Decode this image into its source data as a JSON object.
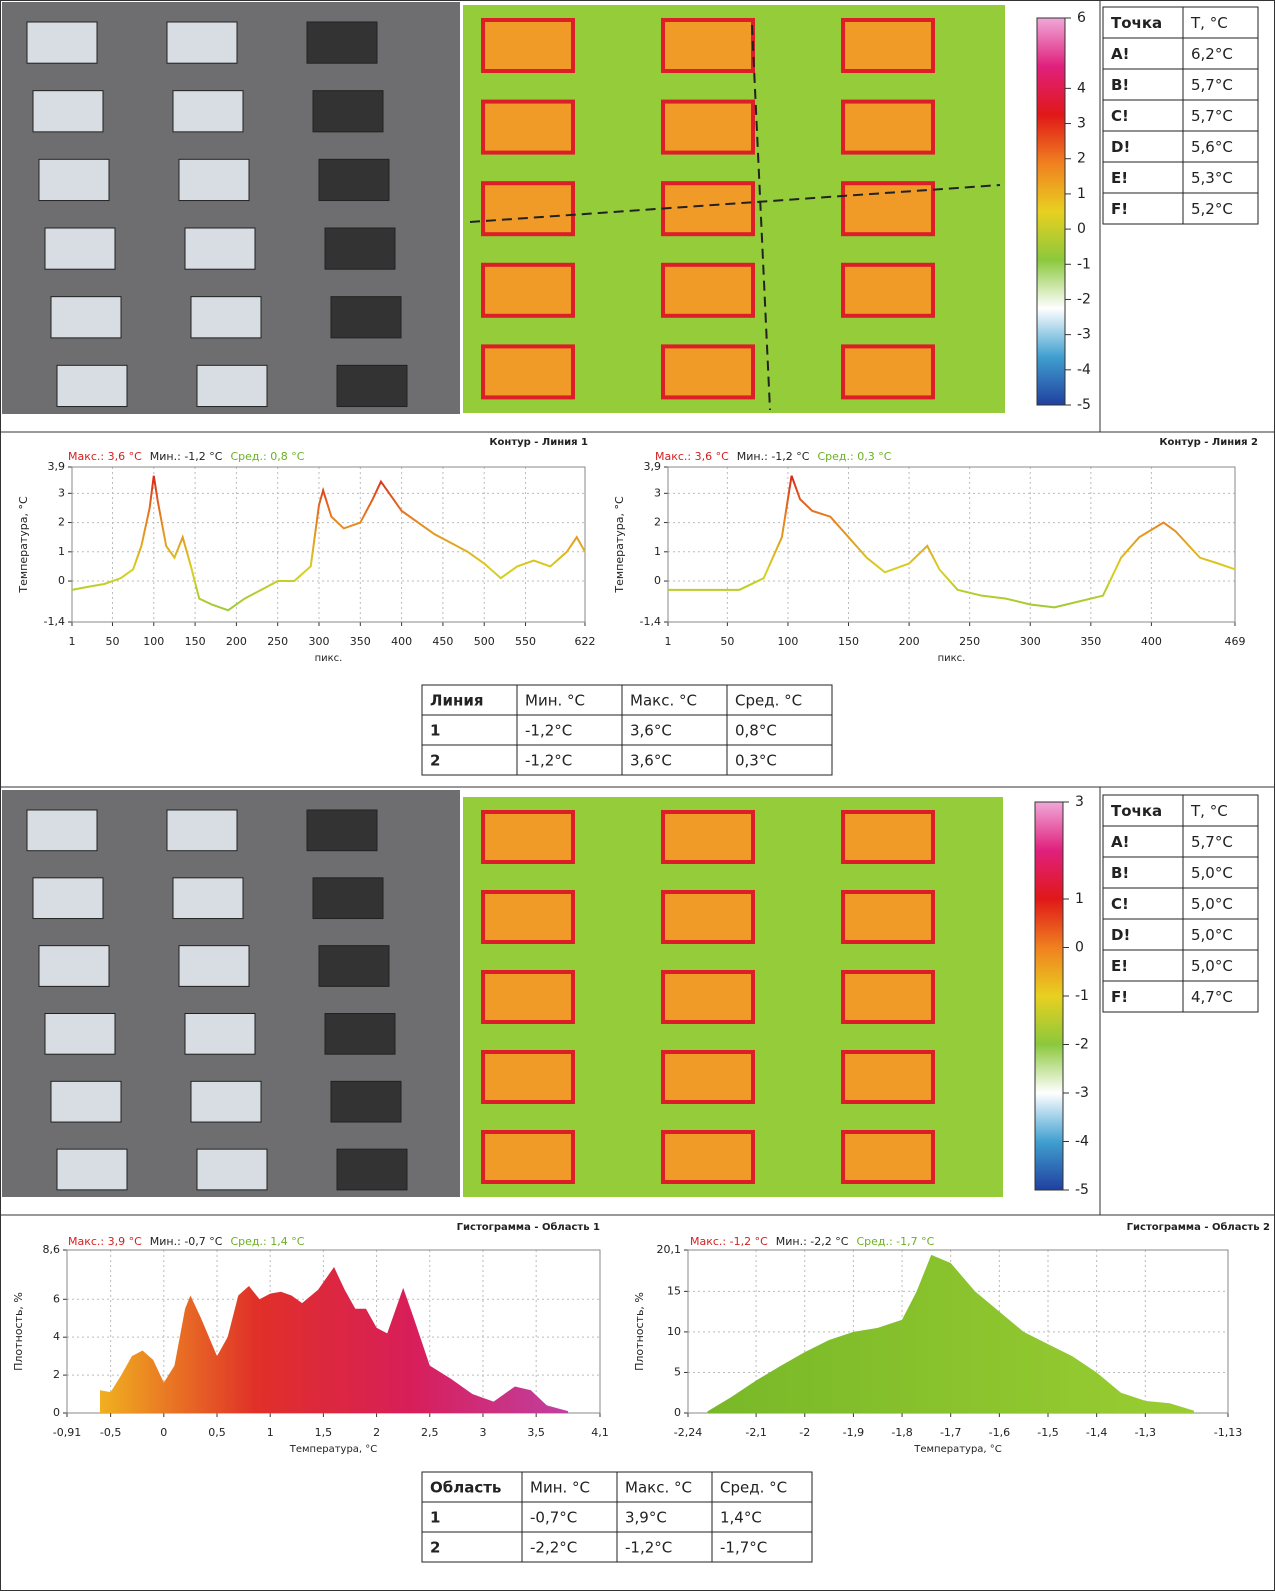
{
  "report": {
    "blocks": [
      {
        "colorbar": {
          "lim": [
            -5,
            6
          ],
          "ticks": [
            6,
            4,
            3,
            2,
            1,
            0,
            -1,
            -2,
            -3,
            -4,
            -5
          ]
        },
        "points": {
          "header": [
            "Точка",
            "T, °C"
          ],
          "rows": [
            [
              "A!",
              "6,2°C"
            ],
            [
              "B!",
              "5,7°C"
            ],
            [
              "C!",
              "5,7°C"
            ],
            [
              "D!",
              "5,6°C"
            ],
            [
              "E!",
              "5,3°C"
            ],
            [
              "F!",
              "5,2°C"
            ]
          ]
        },
        "summary": {
          "header": [
            "Линия",
            "Мин. °C",
            "Макс. °C",
            "Сред. °C"
          ],
          "rows": [
            [
              "1",
              "-1,2°C",
              "3,6°C",
              "0,8°C"
            ],
            [
              "2",
              "-1,2°C",
              "3,6°C",
              "0,3°C"
            ]
          ]
        }
      },
      {
        "colorbar": {
          "lim": [
            -5,
            3
          ],
          "ticks": [
            3,
            1,
            0,
            -1,
            -2,
            -3,
            -4,
            -5
          ]
        },
        "points": {
          "header": [
            "Точка",
            "T, °C"
          ],
          "rows": [
            [
              "A!",
              "5,7°C"
            ],
            [
              "B!",
              "5,0°C"
            ],
            [
              "C!",
              "5,0°C"
            ],
            [
              "D!",
              "5,0°C"
            ],
            [
              "E!",
              "5,0°C"
            ],
            [
              "F!",
              "4,7°C"
            ]
          ]
        },
        "summary": {
          "header": [
            "Область",
            "Мин. °C",
            "Макс. °C",
            "Сред. °C"
          ],
          "rows": [
            [
              "1",
              "-0,7°C",
              "3,9°C",
              "1,4°C"
            ],
            [
              "2",
              "-2,2°C",
              "-1,2°C",
              "-1,7°C"
            ]
          ]
        }
      }
    ]
  },
  "chart_data": [
    {
      "type": "line",
      "title": "Контур - Линия 1",
      "stats": [
        {
          "text": "Макс.: 3,6 °C",
          "color": "#d42020"
        },
        {
          "text": "Мин.: -1,2 °C",
          "color": "#222222"
        },
        {
          "text": "Сред.: 0,8 °C",
          "color": "#6ab023"
        }
      ],
      "x_label": "пикс.",
      "y_label": "Температура, °C",
      "x": [
        1,
        20,
        40,
        60,
        75,
        85,
        95,
        100,
        105,
        115,
        125,
        135,
        145,
        155,
        170,
        190,
        210,
        230,
        250,
        270,
        290,
        300,
        305,
        315,
        330,
        350,
        365,
        375,
        385,
        400,
        420,
        440,
        460,
        480,
        500,
        520,
        540,
        560,
        580,
        600,
        612,
        622
      ],
      "values": [
        -0.3,
        -0.2,
        -0.1,
        0.1,
        0.4,
        1.2,
        2.5,
        3.6,
        2.7,
        1.2,
        0.8,
        1.5,
        0.5,
        -0.6,
        -0.8,
        -1.0,
        -0.6,
        -0.3,
        0,
        0,
        0.5,
        2.6,
        3.1,
        2.2,
        1.8,
        2.0,
        2.8,
        3.4,
        3.0,
        2.4,
        2.0,
        1.6,
        1.3,
        1.0,
        0.6,
        0.1,
        0.5,
        0.7,
        0.5,
        1.0,
        1.5,
        1.0
      ],
      "xlim": [
        1,
        622
      ],
      "xticks": [
        1,
        50,
        100,
        150,
        200,
        250,
        300,
        350,
        400,
        450,
        500,
        550,
        622
      ],
      "ylim": [
        -1.4,
        3.9
      ],
      "yticks": [
        {
          "value": 3.9,
          "label": "3,9"
        },
        3,
        2,
        1,
        0,
        {
          "value": -1.4,
          "label": "-1,4"
        }
      ],
      "grid": true,
      "colormap": [
        "#8cc83c",
        "#d8d020",
        "#e88020",
        "#d41818"
      ]
    },
    {
      "type": "line",
      "title": "Контур - Линия 2",
      "stats": [
        {
          "text": "Макс.: 3,6 °C",
          "color": "#d42020"
        },
        {
          "text": "Мин.: -1,2 °C",
          "color": "#222222"
        },
        {
          "text": "Сред.: 0,3 °C",
          "color": "#6ab023"
        }
      ],
      "x_label": "пикс.",
      "y_label": "Температура, °C",
      "x": [
        1,
        30,
        60,
        80,
        95,
        103,
        110,
        120,
        135,
        150,
        165,
        180,
        200,
        215,
        225,
        240,
        260,
        280,
        300,
        320,
        340,
        360,
        375,
        390,
        410,
        420,
        440,
        455,
        469
      ],
      "values": [
        -0.3,
        -0.3,
        -0.3,
        0.1,
        1.5,
        3.6,
        2.8,
        2.4,
        2.2,
        1.5,
        0.8,
        0.3,
        0.6,
        1.2,
        0.4,
        -0.3,
        -0.5,
        -0.6,
        -0.8,
        -0.9,
        -0.7,
        -0.5,
        0.8,
        1.5,
        2.0,
        1.7,
        0.8,
        0.6,
        0.4
      ],
      "xlim": [
        1,
        469
      ],
      "xticks": [
        1,
        50,
        100,
        150,
        200,
        250,
        300,
        350,
        400,
        469
      ],
      "ylim": [
        -1.4,
        3.9
      ],
      "yticks": [
        {
          "value": 3.9,
          "label": "3,9"
        },
        3,
        2,
        1,
        0,
        {
          "value": -1.4,
          "label": "-1,4"
        }
      ],
      "grid": true,
      "colormap": [
        "#8cc83c",
        "#d8d020",
        "#e88020",
        "#d41818"
      ]
    },
    {
      "type": "area",
      "title": "Гистограмма - Область 1",
      "stats": [
        {
          "text": "Макс.: 3,9 °C",
          "color": "#d42020"
        },
        {
          "text": "Мин.: -0,7 °C",
          "color": "#222222"
        },
        {
          "text": "Сред.: 1,4 °C",
          "color": "#6ab023"
        }
      ],
      "x_label": "Температура, °C",
      "y_label": "Плотность, %",
      "x": [
        -0.6,
        -0.5,
        -0.4,
        -0.3,
        -0.2,
        -0.1,
        0,
        0.1,
        0.2,
        0.25,
        0.35,
        0.5,
        0.6,
        0.7,
        0.8,
        0.9,
        1.0,
        1.1,
        1.2,
        1.3,
        1.45,
        1.6,
        1.7,
        1.8,
        1.9,
        2.0,
        2.1,
        2.25,
        2.35,
        2.5,
        2.7,
        2.9,
        3.1,
        3.3,
        3.45,
        3.6,
        3.8
      ],
      "values": [
        1.2,
        1.1,
        2.0,
        3.0,
        3.3,
        2.8,
        1.6,
        2.5,
        5.5,
        6.2,
        5.0,
        3.0,
        4.0,
        6.2,
        6.7,
        6.0,
        6.3,
        6.4,
        6.2,
        5.8,
        6.5,
        7.7,
        6.5,
        5.5,
        5.5,
        4.5,
        4.2,
        6.6,
        5.0,
        2.5,
        1.8,
        1.0,
        0.6,
        1.4,
        1.2,
        0.4,
        0.1
      ],
      "xlim": [
        -0.91,
        4.1
      ],
      "xticks": [
        {
          "value": -0.91,
          "label": "-0,91"
        },
        {
          "value": -0.5,
          "label": "-0,5"
        },
        0,
        {
          "value": 0.5,
          "label": "0,5"
        },
        1,
        {
          "value": 1.5,
          "label": "1,5"
        },
        2,
        {
          "value": 2.5,
          "label": "2,5"
        },
        3,
        {
          "value": 3.5,
          "label": "3,5"
        },
        {
          "value": 4.1,
          "label": "4,1"
        }
      ],
      "ylim": [
        0,
        8.6
      ],
      "yticks": [
        0,
        2,
        4,
        6,
        {
          "value": 8.6,
          "label": "8,6"
        }
      ],
      "grid": true,
      "colormap": [
        "#f0b020",
        "#e03028",
        "#d81e5a",
        "#c040a0"
      ]
    },
    {
      "type": "area",
      "title": "Гистограмма - Область 2",
      "stats": [
        {
          "text": "Макс.: -1,2 °C",
          "color": "#d42020"
        },
        {
          "text": "Мин.: -2,2 °C",
          "color": "#222222"
        },
        {
          "text": "Сред.: -1,7 °C",
          "color": "#6ab023"
        }
      ],
      "x_label": "Температура, °C",
      "y_label": "Плотность, %",
      "x": [
        -2.2,
        -2.15,
        -2.1,
        -2.05,
        -2.0,
        -1.95,
        -1.9,
        -1.85,
        -1.8,
        -1.77,
        -1.74,
        -1.7,
        -1.65,
        -1.6,
        -1.55,
        -1.5,
        -1.45,
        -1.4,
        -1.35,
        -1.3,
        -1.25,
        -1.2
      ],
      "values": [
        0.2,
        2,
        4,
        5.8,
        7.5,
        9,
        10,
        10.5,
        11.5,
        15,
        19.5,
        18.5,
        15,
        12.5,
        10,
        8.5,
        7,
        5,
        2.5,
        1.5,
        1.2,
        0.3
      ],
      "xlim": [
        -2.24,
        -1.13
      ],
      "xticks": [
        {
          "value": -2.24,
          "label": "-2,24"
        },
        {
          "value": -2.1,
          "label": "-2,1"
        },
        -2,
        {
          "value": -1.9,
          "label": "-1,9"
        },
        {
          "value": -1.8,
          "label": "-1,8"
        },
        {
          "value": -1.7,
          "label": "-1,7"
        },
        {
          "value": -1.6,
          "label": "-1,6"
        },
        {
          "value": -1.5,
          "label": "-1,5"
        },
        {
          "value": -1.4,
          "label": "-1,4"
        },
        {
          "value": -1.3,
          "label": "-1,3"
        },
        {
          "value": -1.13,
          "label": "-1,13"
        }
      ],
      "ylim": [
        0,
        20.1
      ],
      "yticks": [
        0,
        5,
        10,
        15,
        {
          "value": 20.1,
          "label": "20,1"
        }
      ],
      "grid": true,
      "colormap": [
        "#78b828",
        "#9acd32"
      ]
    }
  ]
}
